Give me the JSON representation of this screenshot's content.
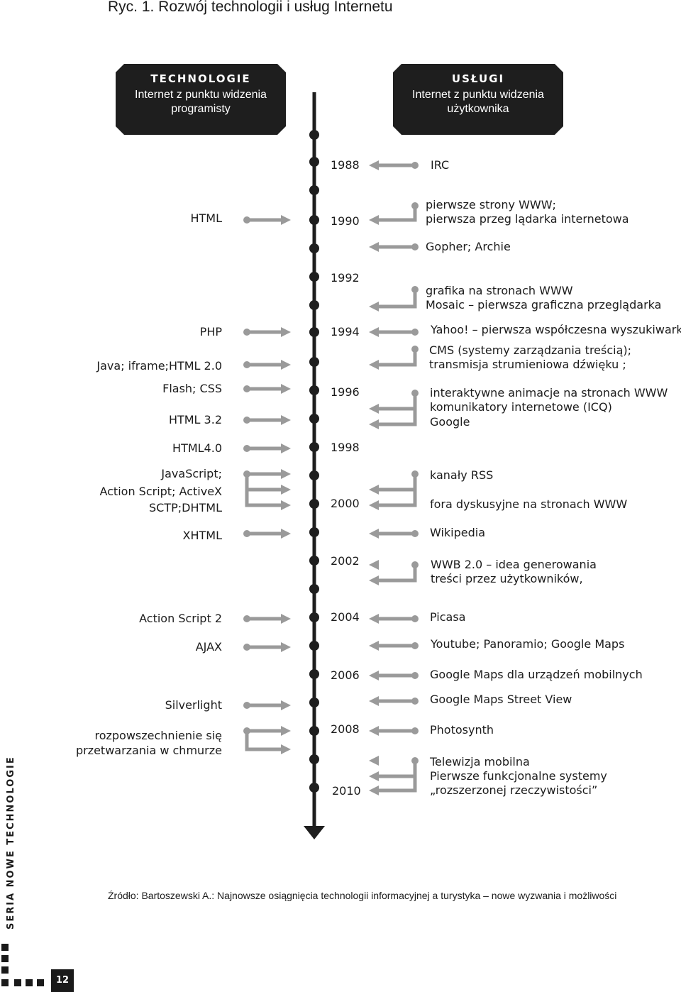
{
  "figure_title": "Ryc. 1. Rozwój technologii i usług Internetu",
  "technology_box": {
    "heading": "TECHNOLOGIE",
    "subtitle": "Internet z punktu widzenia programisty"
  },
  "services_box": {
    "heading": "USŁUGI",
    "subtitle": "Internet z punktu widzenia użytkownika"
  },
  "years": [
    "1988",
    "1990",
    "1992",
    "1994",
    "1996",
    "1998",
    "2000",
    "2002",
    "2004",
    "2006",
    "2008",
    "2010"
  ],
  "technologies": [
    {
      "label": "HTML"
    },
    {
      "label": "PHP"
    },
    {
      "label": "Java; iframe;HTML 2.0"
    },
    {
      "label": "Flash; CSS"
    },
    {
      "label": "HTML 3.2"
    },
    {
      "label": "HTML4.0"
    },
    {
      "label": "JavaScript;"
    },
    {
      "label": "Action Script; ActiveX"
    },
    {
      "label": "SCTP;DHTML"
    },
    {
      "label": "XHTML"
    },
    {
      "label": "Action Script 2"
    },
    {
      "label": "AJAX"
    },
    {
      "label": "Silverlight"
    },
    {
      "label": "rozpowszechnienie się"
    },
    {
      "label": "przetwarzania w chmurze"
    }
  ],
  "services": [
    {
      "label": "IRC"
    },
    {
      "label": "pierwsze strony WWW;"
    },
    {
      "label": "pierwsza przeg lądarka internetowa"
    },
    {
      "label": "Gopher; Archie"
    },
    {
      "label": "grafika na stronach WWW"
    },
    {
      "label": "Mosaic – pierwsza graficzna przeglądarka"
    },
    {
      "label": "Yahoo! – pierwsza współczesna wyszukiwarka"
    },
    {
      "label": "CMS (systemy zarządzania treścią);"
    },
    {
      "label": "transmisja strumieniowa dźwięku ;"
    },
    {
      "label": "interaktywne animacje na stronach WWW"
    },
    {
      "label": "komunikatory internetowe (ICQ)"
    },
    {
      "label": "Google"
    },
    {
      "label": "kanały RSS"
    },
    {
      "label": "fora dyskusyjne na stronach WWW"
    },
    {
      "label": "Wikipedia"
    },
    {
      "label": "WWB 2.0 – idea generowania"
    },
    {
      "label": "treści przez użytkowników,"
    },
    {
      "label": "Picasa"
    },
    {
      "label": "Youtube; Panoramio; Google Maps"
    },
    {
      "label": "Google Maps dla urządzeń mobilnych"
    },
    {
      "label": "Google Maps Street View"
    },
    {
      "label": "Photosynth"
    },
    {
      "label": "Telewizja mobilna"
    },
    {
      "label": "Pierwsze funkcjonalne systemy"
    },
    {
      "label": "„rozszerzonej rzeczywistości”"
    }
  ],
  "source_note": "Źródło: Bartoszewski A.: Najnowsze osiągnięcia technologii informacyjnej a turystyka – nowe wyzwania i możliwości",
  "sidebar_label": "SERIA NOWE TECHNOLOGIE",
  "page_number": "12",
  "colors": {
    "timeline": "#1e1e1e",
    "arrows": "#9a9a9a",
    "box": "#1e1e1e"
  }
}
